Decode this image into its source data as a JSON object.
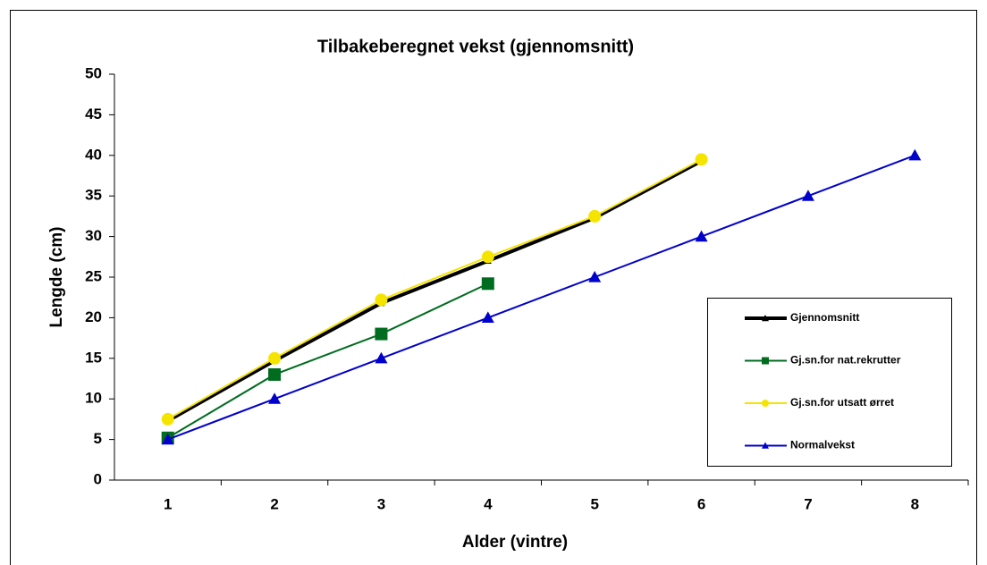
{
  "chart_data": {
    "type": "line",
    "title": "Tilbakeberegnet vekst (gjennomsnitt)",
    "x_label": "Alder (vintre)",
    "y_label": "Lengde (cm)",
    "categories": [
      1,
      2,
      3,
      4,
      5,
      6,
      7,
      8
    ],
    "series": [
      {
        "name": "Gjennomsnitt",
        "color": "#000000",
        "marker": "triangle",
        "width": 4,
        "values": [
          7.3,
          14.7,
          21.8,
          27.0,
          32.3,
          39.3,
          null,
          null
        ]
      },
      {
        "name": "Gj.sn.for nat.rekrutter",
        "color": "#006c1f",
        "marker": "square",
        "width": 2,
        "values": [
          5.2,
          13,
          18,
          24.2,
          null,
          null,
          null,
          null
        ]
      },
      {
        "name": "Gj.sn.for utsatt ørret",
        "color": "#f5e400",
        "marker": "circle",
        "width": 2,
        "values": [
          7.5,
          15,
          22.2,
          27.5,
          32.5,
          39.5,
          null,
          null
        ]
      },
      {
        "name": "Normalvekst",
        "color": "#0000cc",
        "marker": "triangle",
        "width": 2,
        "values": [
          5,
          10,
          15,
          20,
          25,
          30,
          35,
          40
        ]
      }
    ],
    "ylim": [
      0,
      50
    ],
    "yticks": [
      0,
      5,
      10,
      15,
      20,
      25,
      30,
      35,
      40,
      45,
      50
    ],
    "grid": false,
    "legend": "right"
  }
}
